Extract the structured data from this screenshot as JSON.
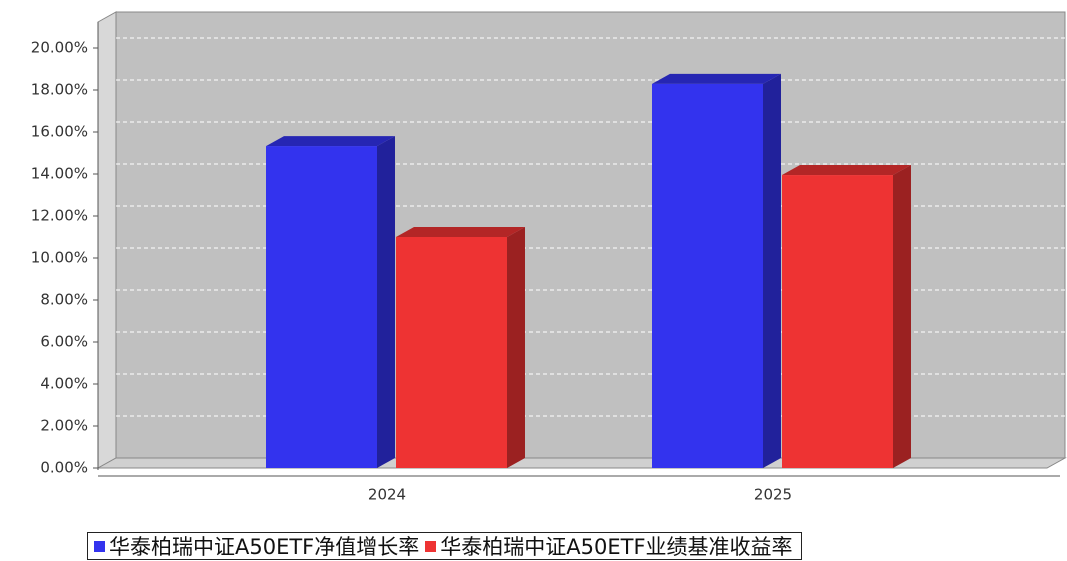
{
  "chart_data": {
    "type": "bar3d",
    "categories": [
      "2024",
      "2025"
    ],
    "series": [
      {
        "name": "华泰柏瑞中证A50ETF净值增长率",
        "color": "#3333ee",
        "values": [
          15.33,
          18.29
        ]
      },
      {
        "name": "华泰柏瑞中证A50ETF业绩基准收益率",
        "color": "#ee3333",
        "values": [
          11.0,
          13.95
        ]
      }
    ],
    "ylim": [
      0,
      20
    ],
    "yticks": [
      {
        "value": 0,
        "label": "0.00%"
      },
      {
        "value": 2,
        "label": "2.00%"
      },
      {
        "value": 4,
        "label": "4.00%"
      },
      {
        "value": 6,
        "label": "6.00%"
      },
      {
        "value": 8,
        "label": "8.00%"
      },
      {
        "value": 10,
        "label": "10.00%"
      },
      {
        "value": 12,
        "label": "12.00%"
      },
      {
        "value": 14,
        "label": "14.00%"
      },
      {
        "value": 16,
        "label": "16.00%"
      },
      {
        "value": 18,
        "label": "18.00%"
      },
      {
        "value": 20,
        "label": "20.00%"
      }
    ],
    "grid": true,
    "legend": "bottom"
  }
}
